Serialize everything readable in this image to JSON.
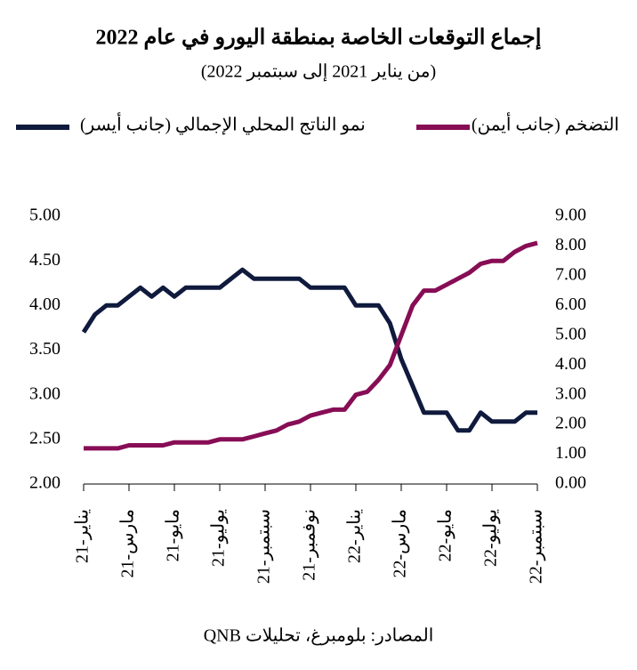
{
  "chart_data": {
    "type": "line",
    "title": "إجماع التوقعات الخاصة بمنطقة اليورو في عام 2022",
    "subtitle": "(من يناير 2021 إلى سبتمبر 2022)",
    "source": "المصادر: بلومبرغ، تحليلات QNB",
    "x": [
      "يناير-21",
      null,
      null,
      null,
      "مارس-21",
      null,
      null,
      null,
      "مايو-21",
      null,
      null,
      null,
      "يوليو-21",
      null,
      null,
      null,
      "سبتمبر-21",
      null,
      null,
      null,
      "نوفمبر-21",
      null,
      null,
      null,
      "يناير-22",
      null,
      null,
      null,
      "مارس-22",
      null,
      null,
      null,
      "مايو-22",
      null,
      null,
      null,
      "يوليو-22",
      null,
      null,
      null,
      "سبتمبر-22"
    ],
    "series": [
      {
        "name": "نمو الناتج المحلي الإجمالي (جانب أيسر)",
        "color": "#0f1a3d",
        "values": [
          3.7,
          3.9,
          4.0,
          4.0,
          4.1,
          4.2,
          4.1,
          4.2,
          4.1,
          4.2,
          4.2,
          4.2,
          4.2,
          4.3,
          4.4,
          4.3,
          4.3,
          4.3,
          4.3,
          4.3,
          4.2,
          4.2,
          4.2,
          4.2,
          4.0,
          4.0,
          4.0,
          3.8,
          3.4,
          3.1,
          2.8,
          2.8,
          2.8,
          2.6,
          2.6,
          2.8,
          2.7,
          2.7,
          2.7,
          2.8,
          2.8
        ]
      },
      {
        "name": "التضخم (جانب أيمن)",
        "color": "#870d55",
        "axis": "y2",
        "values": [
          1.2,
          1.2,
          1.2,
          1.2,
          1.3,
          1.3,
          1.3,
          1.3,
          1.4,
          1.4,
          1.4,
          1.4,
          1.5,
          1.5,
          1.5,
          1.6,
          1.7,
          1.8,
          2.0,
          2.1,
          2.3,
          2.4,
          2.5,
          2.5,
          3.0,
          3.1,
          3.5,
          4.0,
          5.0,
          6.0,
          6.5,
          6.5,
          6.7,
          6.9,
          7.1,
          7.4,
          7.5,
          7.5,
          7.8,
          8.0,
          8.1
        ]
      }
    ],
    "ylim": [
      2,
      5
    ],
    "yticks": [
      {
        "value": 2,
        "label": "2.00"
      },
      {
        "value": 2.5,
        "label": "2.50"
      },
      {
        "value": 3,
        "label": "3.00"
      },
      {
        "value": 3.5,
        "label": "3.50"
      },
      {
        "value": 4,
        "label": "4.00"
      },
      {
        "value": 4.5,
        "label": "4.50"
      },
      {
        "value": 5,
        "label": "5.00"
      }
    ],
    "y2lim": [
      0,
      9
    ],
    "y2ticks": [
      {
        "value": 0,
        "label": "0.00"
      },
      {
        "value": 1,
        "label": "1.00"
      },
      {
        "value": 2,
        "label": "2.00"
      },
      {
        "value": 3,
        "label": "3.00"
      },
      {
        "value": 4,
        "label": "4.00"
      },
      {
        "value": 5,
        "label": "5.00"
      },
      {
        "value": 6,
        "label": "6.00"
      },
      {
        "value": 7,
        "label": "7.00"
      },
      {
        "value": 8,
        "label": "8.00"
      },
      {
        "value": 9,
        "label": "9.00"
      }
    ]
  }
}
